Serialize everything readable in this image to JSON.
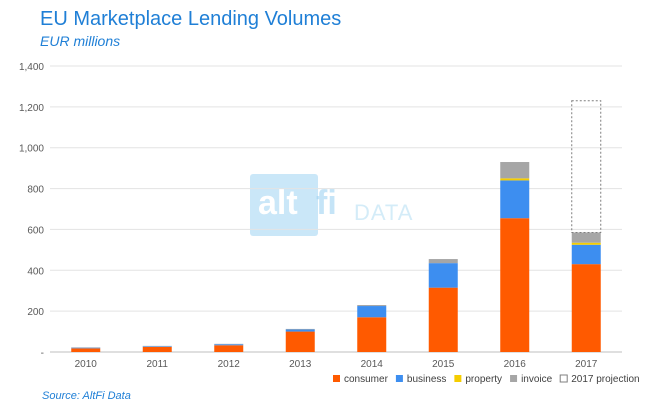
{
  "header": {
    "title": "EU Marketplace Lending Volumes",
    "subtitle": "EUR millions"
  },
  "source": "Source: AltFi Data",
  "watermark": {
    "alt": "alt",
    "fi": "fi",
    "data": "DATA"
  },
  "colors": {
    "consumer": "#ff5a00",
    "business": "#3d8ef0",
    "property": "#f5cd00",
    "invoice": "#a6a6a6",
    "projection": "#7f7f7f",
    "grid": "#e3e3e3",
    "axis_text": "#595959"
  },
  "chart_data": {
    "type": "bar",
    "stacked": true,
    "categories": [
      "2010",
      "2011",
      "2012",
      "2013",
      "2014",
      "2015",
      "2016",
      "2017"
    ],
    "series": [
      {
        "name": "consumer",
        "values": [
          18,
          25,
          33,
          100,
          170,
          315,
          655,
          430
        ]
      },
      {
        "name": "business",
        "values": [
          3,
          3,
          5,
          10,
          55,
          120,
          185,
          95
        ]
      },
      {
        "name": "property",
        "values": [
          0,
          0,
          0,
          0,
          0,
          0,
          10,
          10
        ]
      },
      {
        "name": "invoice",
        "values": [
          2,
          2,
          2,
          3,
          5,
          20,
          80,
          50
        ]
      },
      {
        "name": "2017 projection",
        "values": [
          0,
          0,
          0,
          0,
          0,
          0,
          0,
          645
        ]
      }
    ],
    "ylim": [
      0,
      1400
    ],
    "yticks": [
      0,
      200,
      400,
      600,
      800,
      1000,
      1200,
      1400
    ],
    "ytick_labels": [
      "-",
      "200",
      "400",
      "600",
      "800",
      "1,000",
      "1,200",
      "1,400"
    ],
    "grid": true,
    "legend_position": "bottom-right",
    "xlabel": "",
    "ylabel": ""
  }
}
